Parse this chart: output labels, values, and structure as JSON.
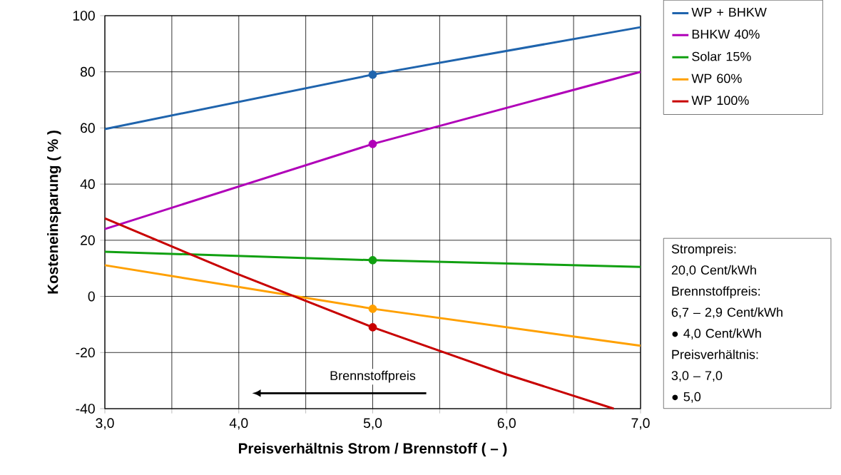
{
  "chart_data": {
    "type": "line",
    "xlabel": "Preisverhältnis Strom / Brennstoff  ( – )",
    "ylabel": "Kosteneinsparung  ( % )",
    "xlim": [
      3,
      7
    ],
    "ylim": [
      -40,
      100
    ],
    "xticks": [
      {
        "value": 3,
        "label": "3,0"
      },
      {
        "value": 3.5,
        "label": null
      },
      {
        "value": 4,
        "label": "4,0"
      },
      {
        "value": 4.5,
        "label": null
      },
      {
        "value": 5,
        "label": "5,0"
      },
      {
        "value": 5.5,
        "label": null
      },
      {
        "value": 6,
        "label": "6,0"
      },
      {
        "value": 6.5,
        "label": null
      },
      {
        "value": 7,
        "label": "7,0"
      }
    ],
    "yticks": [
      -40,
      -20,
      0,
      20,
      40,
      60,
      80,
      100
    ],
    "grid": true,
    "legend": "right",
    "line_style": "solid",
    "series": [
      {
        "name": "WP + BHKW",
        "color": "#1f64ad",
        "x": [
          3,
          5,
          7
        ],
        "values": [
          59.6,
          79,
          95.9
        ]
      },
      {
        "name": "BHKW 40%",
        "color": "#b000b8",
        "x": [
          3,
          5,
          7
        ],
        "values": [
          24,
          54.3,
          80
        ]
      },
      {
        "name": "Solar 15%",
        "color": "#11a011",
        "x": [
          3,
          5,
          7
        ],
        "values": [
          15.9,
          12.9,
          10.5
        ]
      },
      {
        "name": "WP 60%",
        "color": "#ffa000",
        "x": [
          3,
          5,
          7
        ],
        "values": [
          11.1,
          -4.4,
          -17.6
        ]
      },
      {
        "name": "WP 100%",
        "color": "#c80000",
        "x": [
          3,
          4,
          5,
          6,
          6.8
        ],
        "values": [
          27.8,
          7.8,
          -11,
          -27.8,
          -40
        ]
      },
      {
        "type": "scatter",
        "marker": "circle",
        "color": "#1f64ad",
        "x": [
          5
        ],
        "values": [
          79
        ]
      },
      {
        "type": "scatter",
        "marker": "circle",
        "color": "#b000b8",
        "x": [
          5
        ],
        "values": [
          54.3
        ]
      },
      {
        "type": "scatter",
        "marker": "circle",
        "color": "#11a011",
        "x": [
          5
        ],
        "values": [
          12.9
        ]
      },
      {
        "type": "scatter",
        "marker": "circle",
        "color": "#ffa000",
        "x": [
          5
        ],
        "values": [
          -4.4
        ]
      },
      {
        "type": "scatter",
        "marker": "circle",
        "color": "#c80000",
        "x": [
          5
        ],
        "values": [
          -11
        ]
      }
    ],
    "annotations": [
      "Strompreis:",
      "20,0 Cent/kWh",
      "Brennstoffpreis:",
      "6,7 – 2,9 Cent/kWh",
      "● 4,0 Cent/kWh",
      "Preisverhältnis:",
      "3,0 – 7,0",
      "● 5,0",
      "Brennstoffpreis"
    ]
  }
}
